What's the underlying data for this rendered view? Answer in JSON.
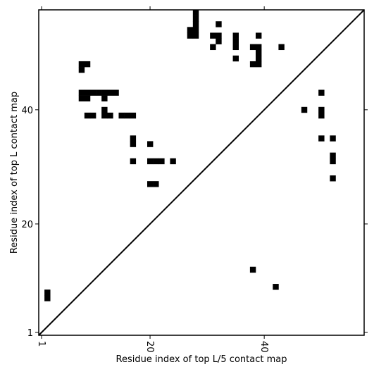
{
  "chart_data": {
    "type": "heatmap",
    "xlabel": "Residue index of top L/5 contact map",
    "ylabel": "Residue index of top L contact map",
    "xlim": [
      0.5,
      57.5
    ],
    "ylim": [
      0.5,
      57.5
    ],
    "xticks": [
      1,
      20,
      40
    ],
    "yticks": [
      1,
      20,
      40
    ],
    "diagonal": true,
    "cell_color": "#000000",
    "upper_contacts": [
      [
        28,
        57
      ],
      [
        28,
        56
      ],
      [
        28,
        55
      ],
      [
        28,
        54
      ],
      [
        28,
        53
      ],
      [
        27,
        54
      ],
      [
        27,
        53
      ],
      [
        32,
        55
      ],
      [
        31,
        53
      ],
      [
        32,
        53
      ],
      [
        32,
        52
      ],
      [
        31,
        51
      ],
      [
        35,
        53
      ],
      [
        35,
        52
      ],
      [
        35,
        51
      ],
      [
        38,
        51
      ],
      [
        39,
        53
      ],
      [
        39,
        51
      ],
      [
        39,
        50
      ],
      [
        39,
        49
      ],
      [
        39,
        48
      ],
      [
        38,
        48
      ],
      [
        43,
        51
      ],
      [
        35,
        49
      ],
      [
        9,
        48
      ],
      [
        8,
        48
      ],
      [
        8,
        47
      ],
      [
        8,
        43
      ],
      [
        9,
        43
      ],
      [
        10,
        43
      ],
      [
        11,
        43
      ],
      [
        12,
        43
      ],
      [
        13,
        43
      ],
      [
        14,
        43
      ],
      [
        8,
        42
      ],
      [
        9,
        42
      ],
      [
        12,
        42
      ],
      [
        12,
        40
      ],
      [
        9,
        39
      ],
      [
        10,
        39
      ],
      [
        12,
        39
      ],
      [
        13,
        39
      ],
      [
        15,
        39
      ],
      [
        16,
        39
      ],
      [
        17,
        39
      ],
      [
        17,
        35
      ],
      [
        17,
        34
      ],
      [
        20,
        34
      ],
      [
        17,
        31
      ],
      [
        20,
        31
      ],
      [
        21,
        31
      ],
      [
        22,
        31
      ],
      [
        24,
        31
      ],
      [
        20,
        27
      ],
      [
        21,
        27
      ],
      [
        47,
        40
      ],
      [
        50,
        43
      ],
      [
        50,
        40
      ],
      [
        50,
        39
      ],
      [
        50,
        35
      ],
      [
        52,
        35
      ],
      [
        52,
        32
      ],
      [
        52,
        31
      ],
      [
        52,
        28
      ]
    ],
    "lower_contacts": [
      [
        2,
        8
      ],
      [
        2,
        7
      ],
      [
        38,
        12
      ],
      [
        42,
        9
      ]
    ]
  }
}
